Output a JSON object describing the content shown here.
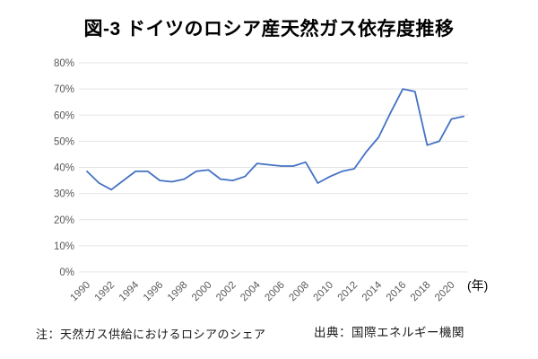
{
  "title": "図-3 ドイツのロシア産天然ガス依存度推移",
  "footer": {
    "note": "注：天然ガス供給におけるロシアのシェア",
    "source": "出典：国際エネルギー機関"
  },
  "chart_data": {
    "type": "line",
    "title": "図-3 ドイツのロシア産天然ガス依存度推移",
    "x": [
      1990,
      1991,
      1992,
      1993,
      1994,
      1995,
      1996,
      1997,
      1998,
      1999,
      2000,
      2001,
      2002,
      2003,
      2004,
      2005,
      2006,
      2007,
      2008,
      2009,
      2010,
      2011,
      2012,
      2013,
      2014,
      2015,
      2016,
      2017,
      2018,
      2019,
      2020,
      2021
    ],
    "values": [
      38.5,
      34,
      31.5,
      35,
      38.5,
      38.5,
      35,
      34.5,
      35.5,
      38.5,
      39,
      35.5,
      35,
      36.5,
      41.5,
      41,
      40.5,
      40.5,
      42,
      34,
      36.5,
      38.5,
      39.5,
      46,
      51.5,
      61,
      70,
      69,
      48.5,
      50,
      58.5,
      59.5
    ],
    "ylim": [
      0,
      80
    ],
    "ytick_step": 10,
    "ytick_labels": [
      "0%",
      "10%",
      "20%",
      "30%",
      "40%",
      "50%",
      "60%",
      "70%",
      "80%"
    ],
    "xtick_labels": [
      "1990",
      "1992",
      "1994",
      "1996",
      "1998",
      "2000",
      "2002",
      "2004",
      "2006",
      "2008",
      "2010",
      "2012",
      "2014",
      "2016",
      "2018",
      "2020"
    ],
    "x_axis_unit": "(年)",
    "xlabel": "",
    "ylabel": "",
    "legend": "none",
    "grid": "horizontal",
    "line_color": "#4472C4",
    "grid_color": "#E4E4E4",
    "tick_label_color": "#595959"
  }
}
